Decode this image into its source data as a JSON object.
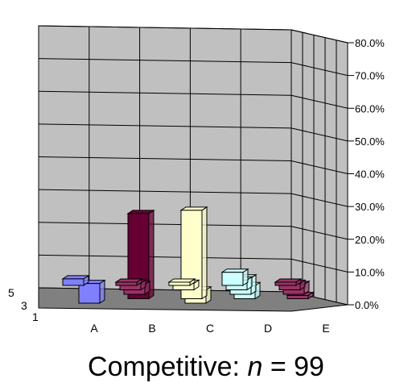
{
  "chart_data": {
    "type": "bar",
    "style": "3d-column",
    "title_prefix": "Competitive: ",
    "title_var": "n",
    "title_suffix": " = 99",
    "categories": [
      "A",
      "B",
      "C",
      "D",
      "E"
    ],
    "depth_labels": [
      "1",
      "3",
      "5"
    ],
    "ylim": [
      0,
      80
    ],
    "yticks": [
      "0.0%",
      "10.0%",
      "20.0%",
      "30.0%",
      "40.0%",
      "50.0%",
      "60.0%",
      "70.0%",
      "80.0%"
    ],
    "grid": true,
    "series": [
      {
        "depth": "1",
        "values": [
          2,
          1,
          1,
          4,
          1
        ],
        "color": "#8080FF",
        "colors": [
          "#8080FF",
          "#993366",
          "#FFFFCC",
          "#CCFFFF",
          "#993366"
        ]
      },
      {
        "depth": "2",
        "values": [
          0,
          2,
          2,
          3,
          2
        ],
        "colors": [
          "#8080FF",
          "#993366",
          "#FFFFCC",
          "#CCFFFF",
          "#993366"
        ]
      },
      {
        "depth": "3",
        "values": [
          0,
          3,
          0,
          5,
          3
        ],
        "colors": [
          "#8080FF",
          "#993366",
          "#FFFFCC",
          "#CCFFFF",
          "#993366"
        ]
      },
      {
        "depth": "4",
        "values": [
          0,
          26,
          27,
          4,
          1
        ],
        "colors": [
          "#8080FF",
          "#660033",
          "#FFFFCC",
          "#CCFFFF",
          "#993366"
        ]
      },
      {
        "depth": "5",
        "values": [
          6,
          0,
          4,
          0,
          0
        ],
        "colors": [
          "#8080FF",
          "#993366",
          "#FFFFCC",
          "#CCFFFF",
          "#993366"
        ]
      }
    ]
  }
}
